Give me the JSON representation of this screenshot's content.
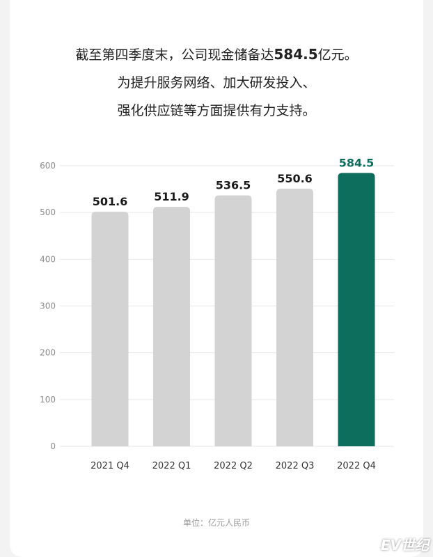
{
  "headline": {
    "line1_pre": "截至第四季度末，公司现金储备达",
    "line1_value": "584.5",
    "line1_post": "亿元。",
    "line2": "为提升服务网络、加大研发投入、",
    "line3": "强化供应链等方面提供有力支持。"
  },
  "unit_note": "单位：亿元人民币",
  "watermark": "EV世纪",
  "colors": {
    "bar_default": "#d3d3d3",
    "bar_highlight": "#0d6e5e",
    "label_default": "#1a1a1a",
    "label_highlight": "#0d6e5e",
    "grid": "#e6e6e6",
    "tick": "#8c8c8c"
  },
  "chart_data": {
    "type": "bar",
    "categories": [
      "2021 Q4",
      "2022 Q1",
      "2022 Q2",
      "2022 Q3",
      "2022 Q4"
    ],
    "values": [
      501.6,
      511.9,
      536.5,
      550.6,
      584.5
    ],
    "data_labels": [
      "501.6",
      "511.9",
      "536.5",
      "550.6",
      "584.5"
    ],
    "highlight_index": 4,
    "title": "",
    "xlabel": "",
    "ylabel": "",
    "ylim": [
      0,
      600
    ],
    "yticks": [
      0,
      100,
      200,
      300,
      400,
      500,
      600
    ],
    "grid": true,
    "legend": "none"
  }
}
